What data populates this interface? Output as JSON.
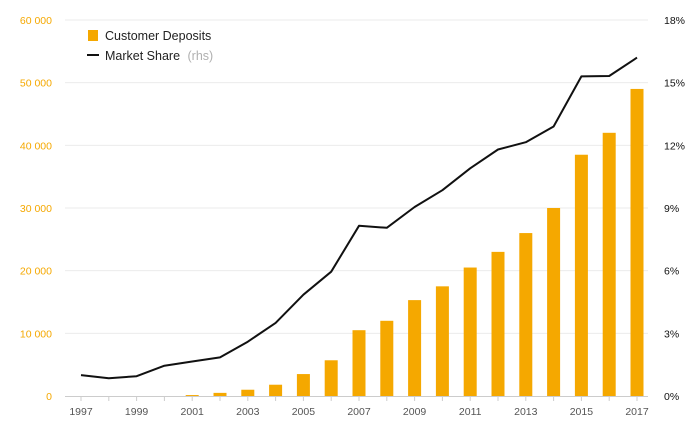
{
  "chart_data": {
    "type": "bar",
    "x": [
      1997,
      1998,
      1999,
      2000,
      2001,
      2002,
      2003,
      2004,
      2005,
      2006,
      2007,
      2008,
      2009,
      2010,
      2011,
      2012,
      2013,
      2014,
      2015,
      2016,
      2017
    ],
    "x_tick_labels": [
      "1997",
      "1999",
      "2001",
      "2003",
      "2005",
      "2007",
      "2009",
      "2011",
      "2013",
      "2015",
      "2017"
    ],
    "series": [
      {
        "name": "Customer Deposits",
        "type": "bar",
        "axis": "left",
        "color": "#F5A800",
        "values": [
          0,
          0,
          0,
          0,
          150,
          500,
          1000,
          1800,
          3500,
          5700,
          10500,
          12000,
          15300,
          17500,
          20500,
          23000,
          26000,
          30000,
          38500,
          42000,
          49000
        ]
      },
      {
        "name": "Market Share",
        "name_suffix": "(rhs)",
        "type": "line",
        "axis": "right",
        "color": "#111111",
        "values": [
          0.01,
          0.0085,
          0.0095,
          0.0145,
          0.0165,
          0.0185,
          0.026,
          0.035,
          0.0485,
          0.0595,
          0.0815,
          0.0805,
          0.0905,
          0.0985,
          0.109,
          0.118,
          0.1215,
          0.129,
          0.153,
          0.1532,
          0.162
        ]
      }
    ],
    "y_left": {
      "lim": [
        0,
        60000
      ],
      "ticks": [
        0,
        10000,
        20000,
        30000,
        40000,
        50000,
        60000
      ],
      "tick_labels": [
        "0",
        "10 000",
        "20 000",
        "30 000",
        "40 000",
        "50 000",
        "60 000"
      ],
      "color": "#F5A800"
    },
    "y_right": {
      "lim": [
        0,
        0.18
      ],
      "ticks": [
        0,
        0.03,
        0.06,
        0.09,
        0.12,
        0.15,
        0.18
      ],
      "tick_labels": [
        "0%",
        "3%",
        "6%",
        "9%",
        "12%",
        "15%",
        "18%"
      ],
      "color": "#111111"
    },
    "grid": true,
    "gridline_color": "#EBEBEB",
    "legend_position": "top-left"
  }
}
